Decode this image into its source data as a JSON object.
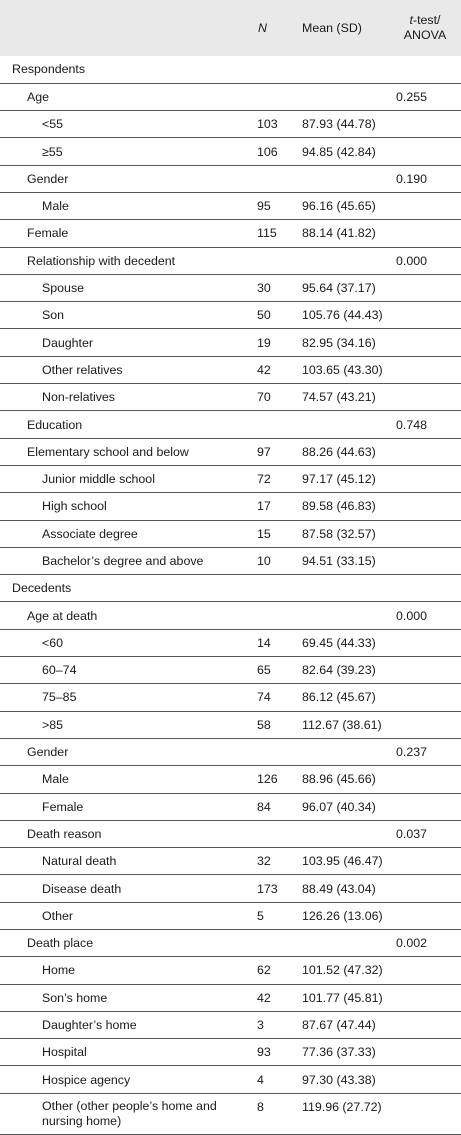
{
  "header": {
    "label": "",
    "n": "N",
    "mean": "Mean (SD)",
    "p_italic": "t",
    "p_rest_line1": "-test/",
    "p_line2": "ANOVA"
  },
  "rows": [
    {
      "label": "Respondents",
      "level": 0,
      "n": "",
      "mean": "",
      "p": ""
    },
    {
      "label": "Age",
      "level": 1,
      "n": "",
      "mean": "",
      "p": "0.255"
    },
    {
      "label": "<55",
      "level": 2,
      "n": "103",
      "mean": "87.93 (44.78)",
      "p": ""
    },
    {
      "label": "≥55",
      "level": 2,
      "n": "106",
      "mean": "94.85 (42.84)",
      "p": ""
    },
    {
      "label": "Gender",
      "level": 1,
      "n": "",
      "mean": "",
      "p": "0.190"
    },
    {
      "label": "Male",
      "level": 2,
      "n": "95",
      "mean": "96.16 (45.65)",
      "p": ""
    },
    {
      "label": "Female",
      "level": 1,
      "n": "115",
      "mean": "88.14 (41.82)",
      "p": ""
    },
    {
      "label": "Relationship with decedent",
      "level": 1,
      "n": "",
      "mean": "",
      "p": "0.000"
    },
    {
      "label": "Spouse",
      "level": 2,
      "n": "30",
      "mean": "95.64 (37.17)",
      "p": ""
    },
    {
      "label": "Son",
      "level": 2,
      "n": "50",
      "mean": "105.76 (44.43)",
      "p": ""
    },
    {
      "label": "Daughter",
      "level": 2,
      "n": "19",
      "mean": "82.95 (34.16)",
      "p": ""
    },
    {
      "label": "Other relatives",
      "level": 2,
      "n": "42",
      "mean": "103.65 (43.30)",
      "p": ""
    },
    {
      "label": "Non-relatives",
      "level": 2,
      "n": "70",
      "mean": "74.57 (43.21)",
      "p": ""
    },
    {
      "label": "Education",
      "level": 1,
      "n": "",
      "mean": "",
      "p": "0.748"
    },
    {
      "label": "Elementary school and below",
      "level": 1,
      "n": "97",
      "mean": "88.26 (44.63)",
      "p": ""
    },
    {
      "label": "Junior middle school",
      "level": 2,
      "n": "72",
      "mean": "97.17 (45.12)",
      "p": ""
    },
    {
      "label": "High school",
      "level": 2,
      "n": "17",
      "mean": "89.58 (46.83)",
      "p": ""
    },
    {
      "label": "Associate degree",
      "level": 2,
      "n": "15",
      "mean": "87.58 (32.57)",
      "p": ""
    },
    {
      "label": "Bachelor’s degree and above",
      "level": 2,
      "n": "10",
      "mean": "94.51 (33.15)",
      "p": ""
    },
    {
      "label": "Decedents",
      "level": 0,
      "n": "",
      "mean": "",
      "p": ""
    },
    {
      "label": "Age at death",
      "level": 1,
      "n": "",
      "mean": "",
      "p": "0.000"
    },
    {
      "label": "<60",
      "level": 2,
      "n": "14",
      "mean": "69.45 (44.33)",
      "p": ""
    },
    {
      "label": "60–74",
      "level": 2,
      "n": "65",
      "mean": "82.64 (39.23)",
      "p": ""
    },
    {
      "label": "75–85",
      "level": 2,
      "n": "74",
      "mean": "86.12 (45.67)",
      "p": ""
    },
    {
      "label": ">85",
      "level": 2,
      "n": "58",
      "mean": "112.67 (38.61)",
      "p": ""
    },
    {
      "label": "Gender",
      "level": 1,
      "n": "",
      "mean": "",
      "p": "0.237"
    },
    {
      "label": "Male",
      "level": 2,
      "n": "126",
      "mean": "88.96 (45.66)",
      "p": ""
    },
    {
      "label": "Female",
      "level": 2,
      "n": "84",
      "mean": "96.07 (40.34)",
      "p": ""
    },
    {
      "label": "Death reason",
      "level": 1,
      "n": "",
      "mean": "",
      "p": "0.037"
    },
    {
      "label": "Natural death",
      "level": 2,
      "n": "32",
      "mean": "103.95 (46.47)",
      "p": ""
    },
    {
      "label": "Disease death",
      "level": 2,
      "n": "173",
      "mean": "88.49 (43.04)",
      "p": ""
    },
    {
      "label": "Other",
      "level": 2,
      "n": "5",
      "mean": "126.26 (13.06)",
      "p": ""
    },
    {
      "label": "Death place",
      "level": 1,
      "n": "",
      "mean": "",
      "p": "0.002"
    },
    {
      "label": "Home",
      "level": 2,
      "n": "62",
      "mean": "101.52 (47.32)",
      "p": ""
    },
    {
      "label": "Son’s home",
      "level": 2,
      "n": "42",
      "mean": "101.77 (45.81)",
      "p": ""
    },
    {
      "label": "Daughter’s home",
      "level": 2,
      "n": "3",
      "mean": "87.67 (47.44)",
      "p": ""
    },
    {
      "label": "Hospital",
      "level": 2,
      "n": "93",
      "mean": "77.36 (37.33)",
      "p": ""
    },
    {
      "label": "Hospice agency",
      "level": 2,
      "n": "4",
      "mean": "97.30 (43.38)",
      "p": ""
    },
    {
      "label": "Other (other people’s home and nursing home)",
      "level": 2,
      "n": "8",
      "mean": "119.96 (27.72)",
      "p": ""
    }
  ]
}
